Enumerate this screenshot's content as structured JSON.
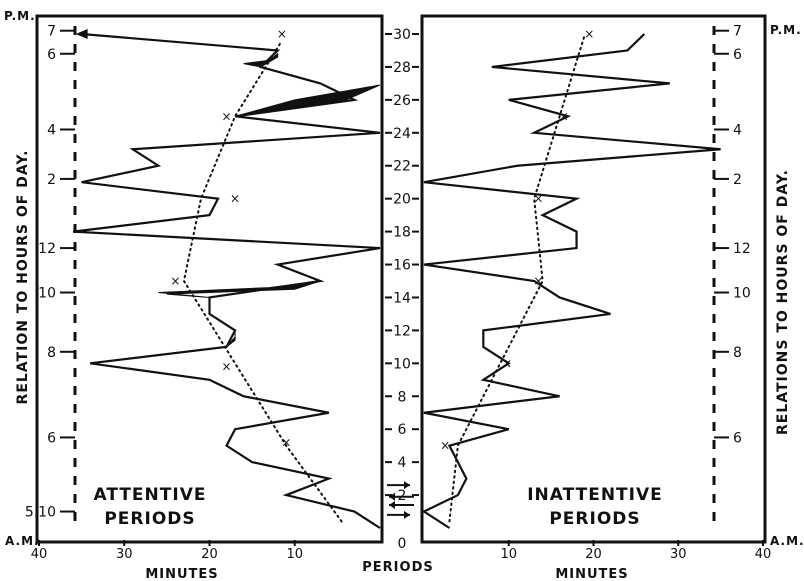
{
  "chart_data": {
    "type": "line",
    "periods_axis": {
      "label": "PERIODS",
      "ticks": [
        0,
        2,
        4,
        6,
        8,
        10,
        12,
        14,
        16,
        18,
        20,
        22,
        24,
        26,
        28,
        30
      ],
      "range": [
        0,
        30
      ]
    },
    "panels": [
      {
        "side": "left",
        "title": "ATTENTIVE PERIODS",
        "xlabel": "MINUTES",
        "x_ticks": [
          40,
          30,
          20,
          10
        ],
        "x_range": [
          40,
          0
        ],
        "ylabel": "RELATION TO HOURS OF DAY.",
        "hour_ticks": [
          {
            "label": "5.10",
            "period": 1.0
          },
          {
            "label": "6",
            "period": 5.5
          },
          {
            "label": "8",
            "period": 10.7
          },
          {
            "label": "10",
            "period": 14.3
          },
          {
            "label": "12",
            "period": 17.0
          },
          {
            "label": "2",
            "period": 21.2
          },
          {
            "label": "4",
            "period": 24.2
          },
          {
            "label": "6",
            "period": 28.8
          },
          {
            "label": "7",
            "period": 30.2
          }
        ],
        "am_label": "A.M.",
        "pm_label": "P.M.",
        "series": [
          {
            "values": [
              [
                0,
                0
              ],
              [
                1,
                3
              ],
              [
                2,
                11
              ],
              [
                3,
                6
              ],
              [
                4,
                15
              ],
              [
                5,
                18
              ],
              [
                6,
                17
              ],
              [
                7,
                6
              ],
              [
                8,
                16
              ],
              [
                9,
                20
              ],
              [
                10,
                34
              ],
              [
                11,
                18
              ],
              [
                12,
                17
              ],
              [
                13,
                20
              ],
              [
                14,
                20
              ],
              [
                15,
                7
              ],
              [
                16,
                12
              ],
              [
                17,
                0
              ],
              [
                18,
                36
              ],
              [
                19,
                20
              ],
              [
                20,
                19
              ],
              [
                21,
                35
              ],
              [
                22,
                26
              ],
              [
                23,
                29
              ],
              [
                24,
                0
              ],
              [
                25,
                17
              ],
              [
                26,
                3
              ],
              [
                27,
                7
              ],
              [
                28,
                14
              ],
              [
                29,
                12
              ],
              [
                30,
                35
              ]
            ],
            "bands": [
              {
                "lower": [
                  [
                    28.0,
                    14.0
                  ],
                  [
                    28.2,
                    16.0
                  ],
                  [
                    28.4,
                    13.0
                  ],
                  [
                    28.8,
                    12.0
                  ]
                ],
                "upper": [
                  [
                    28.0,
                    14.0
                  ],
                  [
                    28.3,
                    13.0
                  ],
                  [
                    28.6,
                    12.0
                  ],
                  [
                    28.8,
                    12.0
                  ]
                ]
              },
              {
                "lower": [
                  [
                    25.0,
                    17.0
                  ],
                  [
                    25.5,
                    10.0
                  ],
                  [
                    26.0,
                    4.0
                  ],
                  [
                    26.9,
                    0.0
                  ]
                ],
                "upper": [
                  [
                    25.0,
                    17.0
                  ],
                  [
                    26.0,
                    10.0
                  ],
                  [
                    26.9,
                    0.0
                  ]
                ]
              },
              {
                "lower": [
                  [
                    14.0,
                    20.0
                  ],
                  [
                    14.3,
                    26.0
                  ],
                  [
                    14.6,
                    13.0
                  ],
                  [
                    15.0,
                    7.0
                  ]
                ],
                "upper": [
                  [
                    14.0,
                    20.0
                  ],
                  [
                    14.2,
                    25.0
                  ],
                  [
                    14.5,
                    10.0
                  ],
                  [
                    15.0,
                    7.0
                  ]
                ]
              },
              {
                "lower": [
                  [
                    11.0,
                    18.0
                  ],
                  [
                    11.4,
                    17.0
                  ],
                  [
                    12.0,
                    17.0
                  ]
                ],
                "upper": [
                  [
                    11.0,
                    18.0
                  ],
                  [
                    11.6,
                    17.0
                  ],
                  [
                    12.0,
                    17.0
                  ]
                ]
              }
            ],
            "trend": [
              [
                0.4,
                4.5
              ],
              [
                5,
                11
              ],
              [
                10,
                17
              ],
              [
                15,
                23
              ],
              [
                20,
                21
              ],
              [
                25,
                17
              ],
              [
                29.6,
                11.5
              ]
            ],
            "trend_marks": [
              [
                5.2,
                11
              ],
              [
                9.8,
                18
              ],
              [
                15,
                24
              ],
              [
                20,
                17
              ],
              [
                25,
                18
              ],
              [
                30,
                11.5
              ]
            ]
          }
        ]
      },
      {
        "side": "right",
        "title": "INATTENTIVE PERIODS",
        "xlabel": "MINUTES",
        "x_ticks": [
          10,
          20,
          30,
          40
        ],
        "x_range": [
          0,
          40
        ],
        "ylabel": "RELATIONS TO HOURS OF DAY.",
        "hour_ticks": [
          {
            "label": "6",
            "period": 5.5
          },
          {
            "label": "8",
            "period": 10.7
          },
          {
            "label": "10",
            "period": 14.3
          },
          {
            "label": "12",
            "period": 17.0
          },
          {
            "label": "2",
            "period": 21.2
          },
          {
            "label": "4",
            "period": 24.2
          },
          {
            "label": "6",
            "period": 28.8
          },
          {
            "label": "7",
            "period": 30.2
          }
        ],
        "am_label": "A.M.",
        "pm_label": "P.M.",
        "series": [
          {
            "values": [
              [
                0,
                3
              ],
              [
                1,
                0
              ],
              [
                2,
                4
              ],
              [
                3,
                5
              ],
              [
                4,
                4
              ],
              [
                5,
                3
              ],
              [
                6,
                10
              ],
              [
                7,
                0
              ],
              [
                8,
                16
              ],
              [
                9,
                7
              ],
              [
                10,
                10
              ],
              [
                11,
                7
              ],
              [
                12,
                7
              ],
              [
                13,
                22
              ],
              [
                14,
                16
              ],
              [
                15,
                13
              ],
              [
                16,
                0
              ],
              [
                17,
                18
              ],
              [
                18,
                18
              ],
              [
                19,
                14
              ],
              [
                20,
                18
              ],
              [
                21,
                0
              ],
              [
                22,
                11
              ],
              [
                23,
                35
              ],
              [
                24,
                13
              ],
              [
                25,
                17
              ],
              [
                26,
                10
              ],
              [
                27,
                29
              ],
              [
                28,
                8
              ],
              [
                29,
                24
              ],
              [
                30,
                26
              ]
            ],
            "trend": [
              [
                0.4,
                3
              ],
              [
                5,
                4
              ],
              [
                10,
                9
              ],
              [
                15,
                14
              ],
              [
                20,
                13
              ],
              [
                25,
                16
              ],
              [
                30,
                19
              ]
            ],
            "trend_marks": [
              [
                5,
                2.5
              ],
              [
                10,
                9.8
              ],
              [
                15,
                13.5
              ],
              [
                20,
                13.5
              ],
              [
                25,
                16.5
              ],
              [
                30,
                19.5
              ]
            ]
          }
        ]
      }
    ]
  }
}
